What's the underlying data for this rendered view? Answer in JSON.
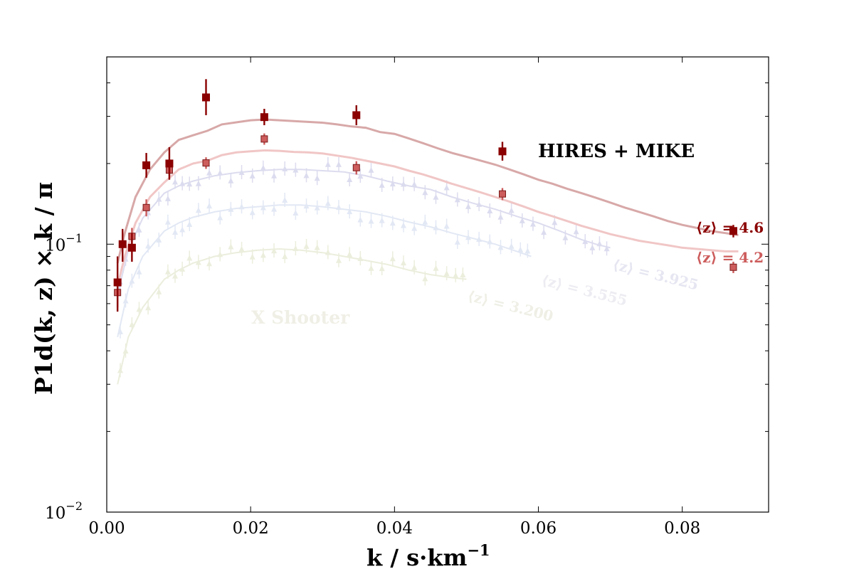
{
  "chart_data": {
    "type": "scatter",
    "xlabel": "k / s·km",
    "xlabel_exponent": "−1",
    "ylabel": "P1d(k, z) × k / π",
    "xscale": "linear",
    "yscale": "log",
    "xlim": [
      0,
      0.092
    ],
    "ylim": [
      0.01,
      0.5
    ],
    "x_ticks": [
      0.0,
      0.02,
      0.04,
      0.06,
      0.08
    ],
    "x_tick_labels": [
      "0.00",
      "0.02",
      "0.04",
      "0.06",
      "0.08"
    ],
    "y_major_ticks": [
      0.01,
      0.1
    ],
    "y_tick_bases": [
      "10",
      "10"
    ],
    "y_tick_exponents": [
      "−2",
      "−1"
    ],
    "annotations": {
      "hires_label": "HIRES + MIKE",
      "xshooter_label": "X Shooter",
      "z46_label": "⟨z⟩ = 4.6",
      "z42_label": "⟨z⟩ = 4.2",
      "z3925_label": "⟨z⟩ = 3.925",
      "z3555_label": "⟨z⟩ = 3.555",
      "z3200_label": "⟨z⟩ = 3.200"
    },
    "colors": {
      "z46": "#8b0000",
      "z46_curve": "#d8a8a8",
      "z42": "#cd5c5c",
      "z42_curve": "#f1c6c6",
      "z3925": "#dcdcef",
      "z3555": "#e2e8f4",
      "z3200": "#ebeedc"
    },
    "series": [
      {
        "name": "⟨z⟩ = 4.6",
        "role": "hires",
        "marker": "square",
        "points": [
          {
            "x": 0.0015,
            "y": 0.072,
            "err": [
              0.016,
              0.018
            ]
          },
          {
            "x": 0.0022,
            "y": 0.1,
            "err": [
              0.014,
              0.014
            ]
          },
          {
            "x": 0.0035,
            "y": 0.097,
            "err": [
              0.011,
              0.013
            ]
          },
          {
            "x": 0.0055,
            "y": 0.197,
            "err": [
              0.02,
              0.022
            ]
          },
          {
            "x": 0.0087,
            "y": 0.2,
            "err": [
              0.026,
              0.03
            ]
          },
          {
            "x": 0.0138,
            "y": 0.353,
            "err": [
              0.05,
              0.06
            ]
          },
          {
            "x": 0.0219,
            "y": 0.298,
            "err": [
              0.02,
              0.022
            ]
          },
          {
            "x": 0.0347,
            "y": 0.303,
            "err": [
              0.025,
              0.027
            ]
          },
          {
            "x": 0.055,
            "y": 0.222,
            "err": [
              0.017,
              0.019
            ]
          },
          {
            "x": 0.0871,
            "y": 0.112,
            "err": [
              0.006,
              0.006
            ]
          }
        ]
      },
      {
        "name": "⟨z⟩ = 4.2",
        "role": "hires",
        "marker": "square",
        "points": [
          {
            "x": 0.0015,
            "y": 0.066,
            "err": [
              0.008,
              0.008
            ]
          },
          {
            "x": 0.0035,
            "y": 0.107,
            "err": [
              0.008,
              0.008
            ]
          },
          {
            "x": 0.0055,
            "y": 0.137,
            "err": [
              0.01,
              0.01
            ]
          },
          {
            "x": 0.0087,
            "y": 0.189,
            "err": [
              0.01,
              0.01
            ]
          },
          {
            "x": 0.0138,
            "y": 0.201,
            "err": [
              0.01,
              0.01
            ]
          },
          {
            "x": 0.0219,
            "y": 0.247,
            "err": [
              0.012,
              0.012
            ]
          },
          {
            "x": 0.0347,
            "y": 0.193,
            "err": [
              0.011,
              0.011
            ]
          },
          {
            "x": 0.055,
            "y": 0.154,
            "err": [
              0.008,
              0.008
            ]
          },
          {
            "x": 0.0871,
            "y": 0.082,
            "err": [
              0.004,
              0.004
            ]
          }
        ]
      }
    ],
    "model_curves": [
      {
        "name": "z46_curve",
        "x": [
          0.0015,
          0.0025,
          0.004,
          0.006,
          0.008,
          0.01,
          0.012,
          0.014,
          0.016,
          0.018,
          0.02,
          0.022,
          0.024,
          0.026,
          0.028,
          0.03,
          0.032,
          0.034,
          0.036,
          0.038,
          0.04,
          0.042,
          0.044,
          0.046,
          0.048,
          0.05,
          0.052,
          0.054,
          0.056,
          0.058,
          0.06,
          0.062,
          0.064,
          0.066,
          0.068,
          0.07,
          0.072,
          0.074,
          0.076,
          0.078,
          0.08,
          0.082,
          0.084,
          0.086,
          0.0878
        ],
        "y": [
          0.085,
          0.11,
          0.15,
          0.19,
          0.22,
          0.245,
          0.255,
          0.265,
          0.28,
          0.285,
          0.29,
          0.292,
          0.29,
          0.288,
          0.286,
          0.284,
          0.28,
          0.275,
          0.272,
          0.262,
          0.258,
          0.248,
          0.238,
          0.228,
          0.219,
          0.212,
          0.205,
          0.198,
          0.19,
          0.182,
          0.174,
          0.168,
          0.161,
          0.155,
          0.149,
          0.143,
          0.137,
          0.132,
          0.127,
          0.122,
          0.118,
          0.115,
          0.112,
          0.11,
          0.108
        ]
      },
      {
        "name": "z42_curve",
        "x": [
          0.0015,
          0.0025,
          0.004,
          0.006,
          0.008,
          0.01,
          0.012,
          0.014,
          0.016,
          0.018,
          0.02,
          0.022,
          0.024,
          0.026,
          0.028,
          0.03,
          0.032,
          0.034,
          0.036,
          0.038,
          0.04,
          0.042,
          0.044,
          0.046,
          0.048,
          0.05,
          0.052,
          0.054,
          0.056,
          0.058,
          0.06,
          0.062,
          0.064,
          0.066,
          0.068,
          0.07,
          0.072,
          0.074,
          0.076,
          0.078,
          0.08,
          0.082,
          0.084,
          0.086,
          0.0878
        ],
        "y": [
          0.07,
          0.09,
          0.12,
          0.15,
          0.17,
          0.19,
          0.2,
          0.205,
          0.215,
          0.22,
          0.222,
          0.224,
          0.223,
          0.221,
          0.22,
          0.218,
          0.214,
          0.21,
          0.205,
          0.2,
          0.195,
          0.188,
          0.182,
          0.175,
          0.168,
          0.162,
          0.156,
          0.15,
          0.144,
          0.138,
          0.132,
          0.127,
          0.122,
          0.117,
          0.113,
          0.109,
          0.106,
          0.103,
          0.101,
          0.099,
          0.097,
          0.096,
          0.095,
          0.094,
          0.094
        ]
      }
    ],
    "faint_series": [
      {
        "name": "⟨z⟩ = 3.925",
        "color_key": "z3925",
        "x_end": 0.07,
        "curve_x": [
          0.0015,
          0.003,
          0.005,
          0.008,
          0.01,
          0.012,
          0.015,
          0.018,
          0.021,
          0.024,
          0.027,
          0.03,
          0.033,
          0.036,
          0.039,
          0.042,
          0.045,
          0.048,
          0.051,
          0.054,
          0.057,
          0.06,
          0.063,
          0.066,
          0.068,
          0.07
        ],
        "curve_y": [
          0.065,
          0.095,
          0.125,
          0.155,
          0.165,
          0.172,
          0.18,
          0.185,
          0.188,
          0.19,
          0.19,
          0.188,
          0.186,
          0.18,
          0.172,
          0.165,
          0.16,
          0.15,
          0.142,
          0.135,
          0.127,
          0.12,
          0.112,
          0.104,
          0.1,
          0.097
        ]
      },
      {
        "name": "⟨z⟩ = 3.555",
        "color_key": "z3555",
        "x_end": 0.059,
        "curve_x": [
          0.0015,
          0.003,
          0.005,
          0.008,
          0.01,
          0.012,
          0.015,
          0.018,
          0.021,
          0.024,
          0.027,
          0.03,
          0.033,
          0.036,
          0.039,
          0.042,
          0.045,
          0.048,
          0.051,
          0.054,
          0.057,
          0.059
        ],
        "curve_y": [
          0.045,
          0.068,
          0.09,
          0.112,
          0.12,
          0.126,
          0.132,
          0.136,
          0.138,
          0.14,
          0.14,
          0.138,
          0.135,
          0.132,
          0.127,
          0.121,
          0.116,
          0.11,
          0.105,
          0.1,
          0.094,
          0.09
        ]
      },
      {
        "name": "⟨z⟩ = 3.200",
        "color_key": "z3200",
        "x_end": 0.05,
        "curve_x": [
          0.0015,
          0.003,
          0.005,
          0.008,
          0.01,
          0.012,
          0.015,
          0.018,
          0.021,
          0.024,
          0.027,
          0.03,
          0.033,
          0.036,
          0.039,
          0.042,
          0.045,
          0.048,
          0.05
        ],
        "curve_y": [
          0.03,
          0.045,
          0.058,
          0.074,
          0.08,
          0.085,
          0.09,
          0.093,
          0.095,
          0.096,
          0.095,
          0.093,
          0.09,
          0.087,
          0.084,
          0.08,
          0.077,
          0.075,
          0.074
        ]
      }
    ]
  }
}
